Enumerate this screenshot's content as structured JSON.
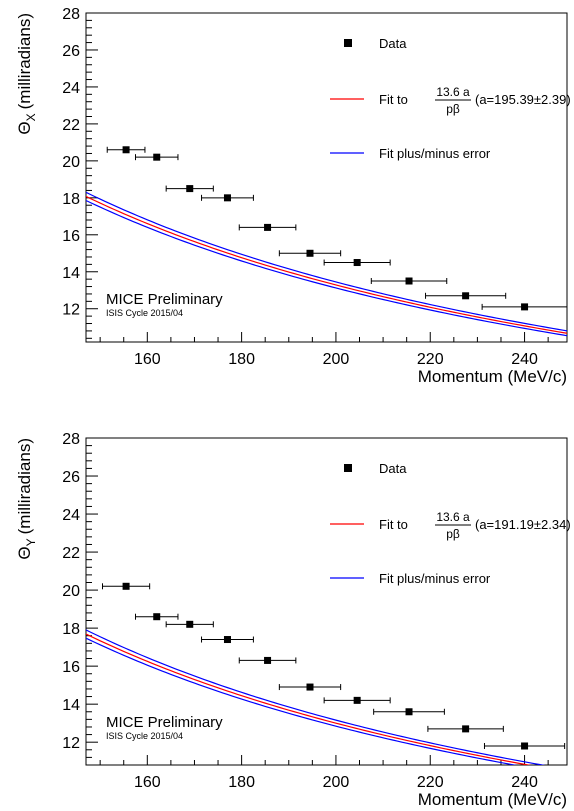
{
  "chart_data": [
    {
      "type": "scatter",
      "ylabel_symbol": "Θ",
      "ylabel_sub": "X",
      "ylabel_rest": "(milliradians)",
      "xlabel": "Momentum (MeV/c)",
      "xlim": [
        147,
        249
      ],
      "ylim": [
        10.2,
        28
      ],
      "xticks": [
        160,
        180,
        200,
        220,
        240
      ],
      "yticks": [
        12,
        14,
        16,
        18,
        20,
        22,
        24,
        26,
        28
      ],
      "annotation_title": "MICE Preliminary",
      "annotation_sub": "ISIS Cycle 2015/04",
      "legend": {
        "data_label": "Data",
        "fit_prefix": "Fit to",
        "fit_numer": "13.6 a",
        "fit_denom": "pβ",
        "fit_param": "(a=195.39±2.39)",
        "error_label": "Fit plus/minus error"
      },
      "fit": {
        "a": 195.39,
        "err": 2.39
      },
      "points": [
        {
          "x": 155.5,
          "y": 20.6,
          "xerr": 4.0,
          "yerr": 0.12
        },
        {
          "x": 162.0,
          "y": 20.2,
          "xerr": 4.5,
          "yerr": 0.12
        },
        {
          "x": 169.0,
          "y": 18.5,
          "xerr": 5.0,
          "yerr": 0.12
        },
        {
          "x": 177.0,
          "y": 18.0,
          "xerr": 5.5,
          "yerr": 0.12
        },
        {
          "x": 185.5,
          "y": 16.4,
          "xerr": 6.0,
          "yerr": 0.12
        },
        {
          "x": 194.5,
          "y": 15.0,
          "xerr": 6.5,
          "yerr": 0.12
        },
        {
          "x": 204.5,
          "y": 14.5,
          "xerr": 7.0,
          "yerr": 0.12
        },
        {
          "x": 215.5,
          "y": 13.5,
          "xerr": 8.0,
          "yerr": 0.12
        },
        {
          "x": 227.5,
          "y": 12.7,
          "xerr": 8.5,
          "yerr": 0.12
        },
        {
          "x": 240.0,
          "y": 12.1,
          "xerr": 9.0,
          "yerr": 0.12
        }
      ]
    },
    {
      "type": "scatter",
      "ylabel_symbol": "Θ",
      "ylabel_sub": "Y",
      "ylabel_rest": "(milliradians)",
      "xlabel": "Momentum (MeV/c)",
      "xlim": [
        147,
        249
      ],
      "ylim": [
        10.8,
        28
      ],
      "xticks": [
        160,
        180,
        200,
        220,
        240
      ],
      "yticks": [
        12,
        14,
        16,
        18,
        20,
        22,
        24,
        26,
        28
      ],
      "annotation_title": "MICE Preliminary",
      "annotation_sub": "ISIS Cycle 2015/04",
      "legend": {
        "data_label": "Data",
        "fit_prefix": "Fit to",
        "fit_numer": "13.6 a",
        "fit_denom": "pβ",
        "fit_param": "(a=191.19±2.34)",
        "error_label": "Fit plus/minus error"
      },
      "fit": {
        "a": 191.19,
        "err": 2.34
      },
      "points": [
        {
          "x": 155.5,
          "y": 20.2,
          "xerr": 5.0,
          "yerr": 0.12
        },
        {
          "x": 162.0,
          "y": 18.6,
          "xerr": 4.5,
          "yerr": 0.12
        },
        {
          "x": 169.0,
          "y": 18.2,
          "xerr": 5.0,
          "yerr": 0.12
        },
        {
          "x": 177.0,
          "y": 17.4,
          "xerr": 5.5,
          "yerr": 0.12
        },
        {
          "x": 185.5,
          "y": 16.3,
          "xerr": 6.0,
          "yerr": 0.12
        },
        {
          "x": 194.5,
          "y": 14.9,
          "xerr": 6.5,
          "yerr": 0.12
        },
        {
          "x": 204.5,
          "y": 14.2,
          "xerr": 7.0,
          "yerr": 0.12
        },
        {
          "x": 215.5,
          "y": 13.6,
          "xerr": 7.5,
          "yerr": 0.12
        },
        {
          "x": 227.5,
          "y": 12.7,
          "xerr": 8.0,
          "yerr": 0.12
        },
        {
          "x": 240.0,
          "y": 11.8,
          "xerr": 8.5,
          "yerr": 0.12
        }
      ]
    }
  ],
  "colors": {
    "fit_line": "#ff0000",
    "error_line": "#0000ff",
    "data_marker": "#000000"
  }
}
